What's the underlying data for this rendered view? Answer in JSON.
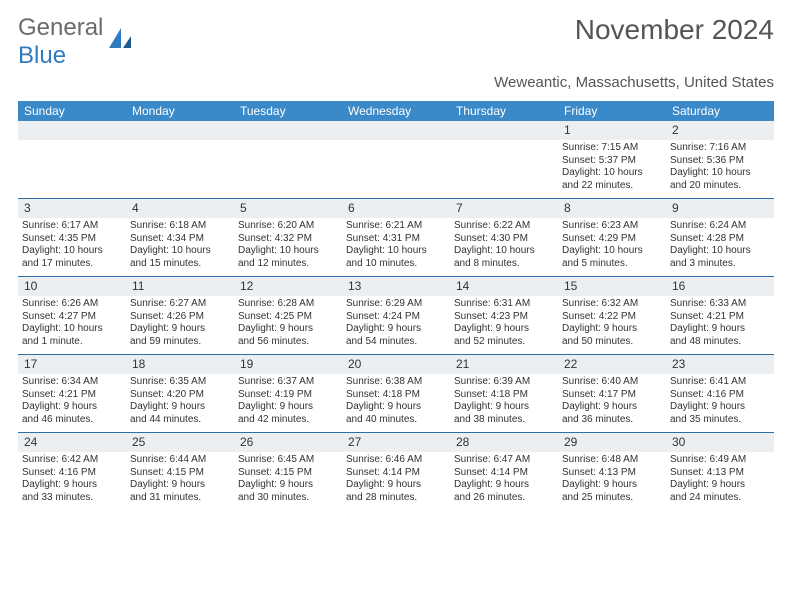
{
  "logo": {
    "text1": "General",
    "text2": "Blue",
    "icon_color": "#2f7ac0"
  },
  "title": "November 2024",
  "location": "Weweantic, Massachusetts, United States",
  "colors": {
    "header_bg": "#3a89c9",
    "header_text": "#ffffff",
    "daynum_bg": "#eceff1",
    "rule": "#2f6fa6",
    "body_text": "#333333",
    "title_text": "#555555"
  },
  "typography": {
    "title_fontsize": 28,
    "location_fontsize": 15,
    "header_fontsize": 12,
    "cell_fontsize": 10
  },
  "days": [
    "Sunday",
    "Monday",
    "Tuesday",
    "Wednesday",
    "Thursday",
    "Friday",
    "Saturday"
  ],
  "weeks": [
    [
      {
        "n": "",
        "lines": []
      },
      {
        "n": "",
        "lines": []
      },
      {
        "n": "",
        "lines": []
      },
      {
        "n": "",
        "lines": []
      },
      {
        "n": "",
        "lines": []
      },
      {
        "n": "1",
        "lines": [
          "Sunrise: 7:15 AM",
          "Sunset: 5:37 PM",
          "Daylight: 10 hours",
          "and 22 minutes."
        ]
      },
      {
        "n": "2",
        "lines": [
          "Sunrise: 7:16 AM",
          "Sunset: 5:36 PM",
          "Daylight: 10 hours",
          "and 20 minutes."
        ]
      }
    ],
    [
      {
        "n": "3",
        "lines": [
          "Sunrise: 6:17 AM",
          "Sunset: 4:35 PM",
          "Daylight: 10 hours",
          "and 17 minutes."
        ]
      },
      {
        "n": "4",
        "lines": [
          "Sunrise: 6:18 AM",
          "Sunset: 4:34 PM",
          "Daylight: 10 hours",
          "and 15 minutes."
        ]
      },
      {
        "n": "5",
        "lines": [
          "Sunrise: 6:20 AM",
          "Sunset: 4:32 PM",
          "Daylight: 10 hours",
          "and 12 minutes."
        ]
      },
      {
        "n": "6",
        "lines": [
          "Sunrise: 6:21 AM",
          "Sunset: 4:31 PM",
          "Daylight: 10 hours",
          "and 10 minutes."
        ]
      },
      {
        "n": "7",
        "lines": [
          "Sunrise: 6:22 AM",
          "Sunset: 4:30 PM",
          "Daylight: 10 hours",
          "and 8 minutes."
        ]
      },
      {
        "n": "8",
        "lines": [
          "Sunrise: 6:23 AM",
          "Sunset: 4:29 PM",
          "Daylight: 10 hours",
          "and 5 minutes."
        ]
      },
      {
        "n": "9",
        "lines": [
          "Sunrise: 6:24 AM",
          "Sunset: 4:28 PM",
          "Daylight: 10 hours",
          "and 3 minutes."
        ]
      }
    ],
    [
      {
        "n": "10",
        "lines": [
          "Sunrise: 6:26 AM",
          "Sunset: 4:27 PM",
          "Daylight: 10 hours",
          "and 1 minute."
        ]
      },
      {
        "n": "11",
        "lines": [
          "Sunrise: 6:27 AM",
          "Sunset: 4:26 PM",
          "Daylight: 9 hours",
          "and 59 minutes."
        ]
      },
      {
        "n": "12",
        "lines": [
          "Sunrise: 6:28 AM",
          "Sunset: 4:25 PM",
          "Daylight: 9 hours",
          "and 56 minutes."
        ]
      },
      {
        "n": "13",
        "lines": [
          "Sunrise: 6:29 AM",
          "Sunset: 4:24 PM",
          "Daylight: 9 hours",
          "and 54 minutes."
        ]
      },
      {
        "n": "14",
        "lines": [
          "Sunrise: 6:31 AM",
          "Sunset: 4:23 PM",
          "Daylight: 9 hours",
          "and 52 minutes."
        ]
      },
      {
        "n": "15",
        "lines": [
          "Sunrise: 6:32 AM",
          "Sunset: 4:22 PM",
          "Daylight: 9 hours",
          "and 50 minutes."
        ]
      },
      {
        "n": "16",
        "lines": [
          "Sunrise: 6:33 AM",
          "Sunset: 4:21 PM",
          "Daylight: 9 hours",
          "and 48 minutes."
        ]
      }
    ],
    [
      {
        "n": "17",
        "lines": [
          "Sunrise: 6:34 AM",
          "Sunset: 4:21 PM",
          "Daylight: 9 hours",
          "and 46 minutes."
        ]
      },
      {
        "n": "18",
        "lines": [
          "Sunrise: 6:35 AM",
          "Sunset: 4:20 PM",
          "Daylight: 9 hours",
          "and 44 minutes."
        ]
      },
      {
        "n": "19",
        "lines": [
          "Sunrise: 6:37 AM",
          "Sunset: 4:19 PM",
          "Daylight: 9 hours",
          "and 42 minutes."
        ]
      },
      {
        "n": "20",
        "lines": [
          "Sunrise: 6:38 AM",
          "Sunset: 4:18 PM",
          "Daylight: 9 hours",
          "and 40 minutes."
        ]
      },
      {
        "n": "21",
        "lines": [
          "Sunrise: 6:39 AM",
          "Sunset: 4:18 PM",
          "Daylight: 9 hours",
          "and 38 minutes."
        ]
      },
      {
        "n": "22",
        "lines": [
          "Sunrise: 6:40 AM",
          "Sunset: 4:17 PM",
          "Daylight: 9 hours",
          "and 36 minutes."
        ]
      },
      {
        "n": "23",
        "lines": [
          "Sunrise: 6:41 AM",
          "Sunset: 4:16 PM",
          "Daylight: 9 hours",
          "and 35 minutes."
        ]
      }
    ],
    [
      {
        "n": "24",
        "lines": [
          "Sunrise: 6:42 AM",
          "Sunset: 4:16 PM",
          "Daylight: 9 hours",
          "and 33 minutes."
        ]
      },
      {
        "n": "25",
        "lines": [
          "Sunrise: 6:44 AM",
          "Sunset: 4:15 PM",
          "Daylight: 9 hours",
          "and 31 minutes."
        ]
      },
      {
        "n": "26",
        "lines": [
          "Sunrise: 6:45 AM",
          "Sunset: 4:15 PM",
          "Daylight: 9 hours",
          "and 30 minutes."
        ]
      },
      {
        "n": "27",
        "lines": [
          "Sunrise: 6:46 AM",
          "Sunset: 4:14 PM",
          "Daylight: 9 hours",
          "and 28 minutes."
        ]
      },
      {
        "n": "28",
        "lines": [
          "Sunrise: 6:47 AM",
          "Sunset: 4:14 PM",
          "Daylight: 9 hours",
          "and 26 minutes."
        ]
      },
      {
        "n": "29",
        "lines": [
          "Sunrise: 6:48 AM",
          "Sunset: 4:13 PM",
          "Daylight: 9 hours",
          "and 25 minutes."
        ]
      },
      {
        "n": "30",
        "lines": [
          "Sunrise: 6:49 AM",
          "Sunset: 4:13 PM",
          "Daylight: 9 hours",
          "and 24 minutes."
        ]
      }
    ]
  ]
}
